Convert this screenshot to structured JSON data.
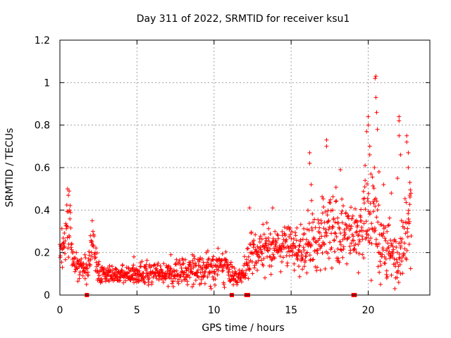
{
  "chart_data": {
    "type": "scatter",
    "title": "Day 311 of 2022, SRMTID for receiver ksu1",
    "xlabel": "GPS time / hours",
    "ylabel": "SRMTID / TECUs",
    "xlim": [
      0,
      24
    ],
    "ylim": [
      0,
      1.2
    ],
    "grid": true,
    "marker": "plus",
    "xticks": [
      0,
      5,
      10,
      15,
      20
    ],
    "xtick_labels": [
      "0",
      "5",
      "10",
      "15",
      "20"
    ],
    "yticks": [
      0,
      0.2,
      0.4,
      0.6,
      0.8,
      1,
      1.2
    ],
    "ytick_labels": [
      "0",
      "0.2",
      "0.4",
      "0.6",
      "0.8",
      "1",
      "1.2"
    ],
    "series": [
      {
        "name": "ksu1",
        "color": "#ff0000",
        "envelope": {
          "description": "approximate median and spread of SRMTID vs GPS hour",
          "hours": [
            0.0,
            0.3,
            0.6,
            0.9,
            1.3,
            1.8,
            2.1,
            2.5,
            3.0,
            4.0,
            5.0,
            6.0,
            7.0,
            8.0,
            9.0,
            10.0,
            10.5,
            11.0,
            11.8,
            12.2,
            12.6,
            13.0,
            13.5,
            14.0,
            14.5,
            15.0,
            15.5,
            16.0,
            16.5,
            17.0,
            17.5,
            18.0,
            18.5,
            19.0,
            19.5,
            20.0,
            20.3,
            20.6,
            21.0,
            21.5,
            22.0,
            22.4,
            22.8
          ],
          "median": [
            0.17,
            0.24,
            0.35,
            0.13,
            0.15,
            0.1,
            0.27,
            0.11,
            0.1,
            0.09,
            0.1,
            0.1,
            0.1,
            0.11,
            0.13,
            0.12,
            0.15,
            0.11,
            0.08,
            0.15,
            0.2,
            0.2,
            0.23,
            0.22,
            0.23,
            0.24,
            0.22,
            0.22,
            0.25,
            0.3,
            0.32,
            0.3,
            0.28,
            0.3,
            0.32,
            0.36,
            0.38,
            0.3,
            0.25,
            0.2,
            0.16,
            0.35,
            0.35
          ],
          "spread": [
            0.05,
            0.07,
            0.12,
            0.05,
            0.05,
            0.04,
            0.07,
            0.04,
            0.03,
            0.03,
            0.03,
            0.04,
            0.04,
            0.04,
            0.05,
            0.05,
            0.06,
            0.05,
            0.03,
            0.07,
            0.08,
            0.07,
            0.07,
            0.07,
            0.07,
            0.07,
            0.08,
            0.1,
            0.12,
            0.12,
            0.13,
            0.12,
            0.1,
            0.1,
            0.12,
            0.15,
            0.18,
            0.15,
            0.12,
            0.1,
            0.08,
            0.15,
            0.13
          ]
        },
        "highlights": [
          {
            "x": 0.5,
            "y": 0.5
          },
          {
            "x": 0.6,
            "y": 0.49
          },
          {
            "x": 0.55,
            "y": 0.47
          },
          {
            "x": 2.1,
            "y": 0.35
          },
          {
            "x": 4.8,
            "y": 0.18
          },
          {
            "x": 7.2,
            "y": 0.19
          },
          {
            "x": 8.6,
            "y": 0.19
          },
          {
            "x": 9.5,
            "y": 0.2
          },
          {
            "x": 12.3,
            "y": 0.41
          },
          {
            "x": 13.8,
            "y": 0.41
          },
          {
            "x": 16.2,
            "y": 0.67
          },
          {
            "x": 16.2,
            "y": 0.62
          },
          {
            "x": 16.3,
            "y": 0.52
          },
          {
            "x": 17.3,
            "y": 0.7
          },
          {
            "x": 17.3,
            "y": 0.73
          },
          {
            "x": 18.2,
            "y": 0.59
          },
          {
            "x": 19.8,
            "y": 0.61
          },
          {
            "x": 20.0,
            "y": 0.84
          },
          {
            "x": 20.0,
            "y": 0.8
          },
          {
            "x": 19.9,
            "y": 0.77
          },
          {
            "x": 20.1,
            "y": 0.7
          },
          {
            "x": 20.1,
            "y": 0.66
          },
          {
            "x": 20.5,
            "y": 1.03
          },
          {
            "x": 20.45,
            "y": 1.02
          },
          {
            "x": 20.5,
            "y": 0.93
          },
          {
            "x": 20.55,
            "y": 0.86
          },
          {
            "x": 20.6,
            "y": 0.78
          },
          {
            "x": 20.4,
            "y": 0.6
          },
          {
            "x": 20.7,
            "y": 0.58
          },
          {
            "x": 21.0,
            "y": 0.52
          },
          {
            "x": 21.5,
            "y": 0.48
          },
          {
            "x": 22.0,
            "y": 0.84
          },
          {
            "x": 22.0,
            "y": 0.82
          },
          {
            "x": 22.0,
            "y": 0.75
          },
          {
            "x": 22.1,
            "y": 0.66
          },
          {
            "x": 22.5,
            "y": 0.75
          },
          {
            "x": 22.5,
            "y": 0.72
          },
          {
            "x": 22.6,
            "y": 0.67
          },
          {
            "x": 22.6,
            "y": 0.6
          },
          {
            "x": 22.7,
            "y": 0.53
          },
          {
            "x": 22.7,
            "y": 0.47
          },
          {
            "x": 21.9,
            "y": 0.55
          },
          {
            "x": 20.8,
            "y": 0.05
          },
          {
            "x": 21.2,
            "y": 0.08
          },
          {
            "x": 22.1,
            "y": 0.1
          }
        ],
        "zero_values": [
          {
            "x": 1.75,
            "y": 0
          },
          {
            "x": 11.15,
            "y": 0
          },
          {
            "x": 12.1,
            "y": 0
          },
          {
            "x": 12.2,
            "y": 0
          },
          {
            "x": 19.05,
            "y": 0
          },
          {
            "x": 19.12,
            "y": 0
          }
        ]
      }
    ]
  }
}
